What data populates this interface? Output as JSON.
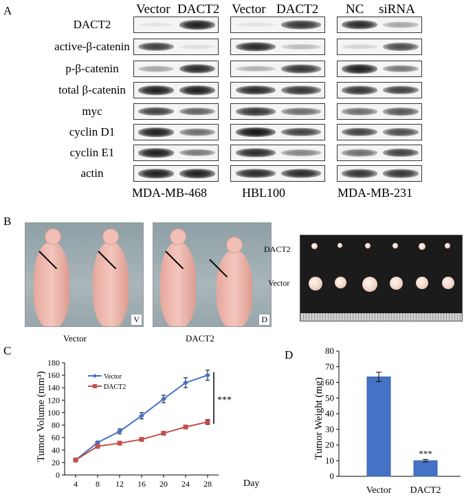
{
  "panels": {
    "a": "A",
    "b": "B",
    "c": "C",
    "d": "D"
  },
  "blot": {
    "groups": [
      {
        "headers": [
          "Vector",
          "DACT2"
        ],
        "cell_line": "MDA-MB-468"
      },
      {
        "headers": [
          "Vector",
          "DACT2"
        ],
        "cell_line": "HBL100"
      },
      {
        "headers": [
          "NC",
          "siRNA"
        ],
        "cell_line": "MDA-MB-231"
      }
    ],
    "rows": [
      "DACT2",
      "active-β-catenin",
      "p-β-catenin",
      "total β-catenin",
      "myc",
      "cyclin D1",
      "cyclin E1",
      "actin"
    ]
  },
  "photos": {
    "left_corner": "V",
    "right_corner": "D",
    "left_caption": "Vector",
    "right_caption": "DACT2",
    "tumor_row_top": "DACT2",
    "tumor_row_bottom": "Vector"
  },
  "chart_data": [
    {
      "type": "line",
      "title": "",
      "xlabel": "Day",
      "ylabel": "Tumor Volume (mm³)",
      "x": [
        4,
        8,
        12,
        16,
        20,
        24,
        28
      ],
      "ylim": [
        0,
        180
      ],
      "yticks": [
        0,
        20,
        40,
        60,
        80,
        100,
        120,
        140,
        160,
        180
      ],
      "series": [
        {
          "name": "Vector",
          "color": "#4472c4",
          "values": [
            24,
            52,
            70,
            95,
            122,
            148,
            160
          ],
          "errors": [
            2,
            2,
            4,
            5,
            6,
            8,
            8
          ]
        },
        {
          "name": "DACT2",
          "color": "#c0504d",
          "values": [
            24,
            46,
            51,
            57,
            67,
            77,
            85
          ],
          "errors": [
            2,
            2,
            2,
            2,
            3,
            3,
            4
          ]
        }
      ],
      "annotation": "***",
      "legend": "top-left",
      "grid": false
    },
    {
      "type": "bar",
      "title": "",
      "xlabel": "",
      "ylabel": "Tumor Weight (mg)",
      "categories": [
        "Vector",
        "DACT2"
      ],
      "values": [
        63.5,
        10
      ],
      "errors": [
        3,
        0.8
      ],
      "color": "#4472c4",
      "ylim": [
        0,
        80
      ],
      "yticks": [
        0,
        10,
        20,
        30,
        40,
        50,
        60,
        70,
        80
      ],
      "annotation": "***",
      "grid": false
    }
  ]
}
